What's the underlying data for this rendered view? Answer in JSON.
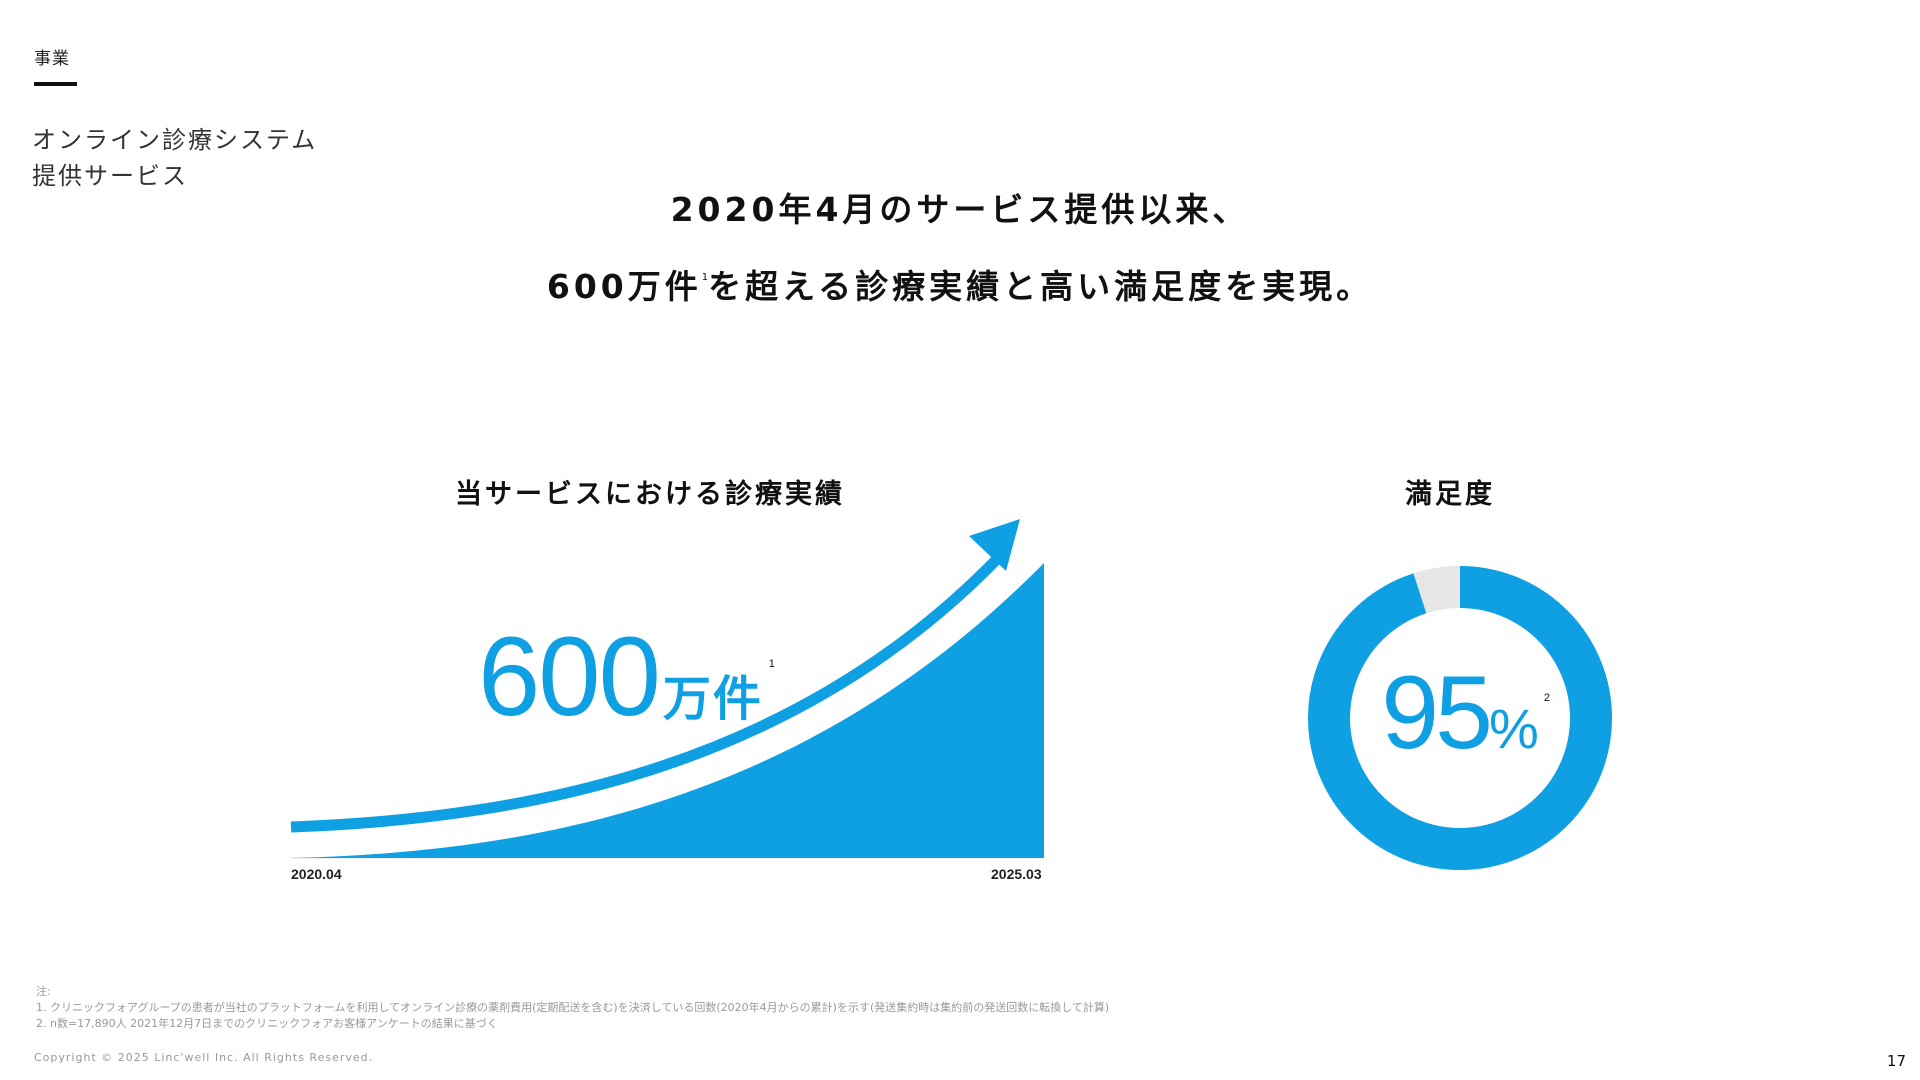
{
  "header": {
    "section": "事業",
    "subtitle_line1": "オンライン診療システム",
    "subtitle_line2": "提供サービス"
  },
  "headline": {
    "line1": "2020年4月のサービス提供以来、",
    "line2_a": "600万件",
    "line2_note": "1",
    "line2_b": "を超える診療実績と高い満足度を実現。"
  },
  "growth": {
    "title": "当サービスにおける診療実績",
    "figure": "600",
    "unit": "万件",
    "note": "1",
    "x_start": "2020.04",
    "x_end": "2025.03"
  },
  "satisfaction": {
    "title": "満足度",
    "figure": "95",
    "unit": "%",
    "note": "2",
    "value": 0.95
  },
  "colors": {
    "accent": "#0ea0e3",
    "remainder": "#e6e6e6"
  },
  "footnotes": {
    "label": "注:",
    "note1": "1. クリニックフォアグループの患者が当社のプラットフォームを利用してオンライン診療の薬剤費用(定期配送を含む)を決済している回数(2020年4月からの累計)を示す(発送集約時は集約前の発送回数に転換して計算)",
    "note2": "2. n数=17,890人 2021年12月7日までのクリニックフォアお客様アンケートの結果に基づく"
  },
  "footer": {
    "copyright": "Copyright © 2025 Linc'well Inc. All Rights Reserved.",
    "page": "17"
  }
}
